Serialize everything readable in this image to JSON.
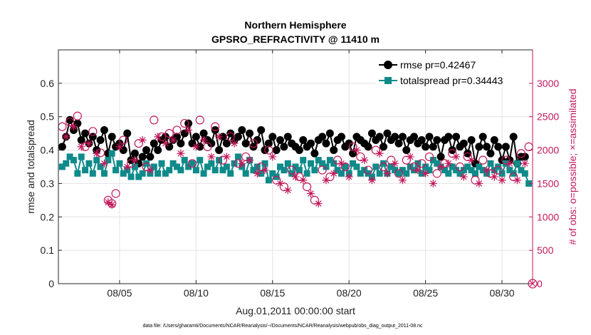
{
  "chart_data": {
    "type": "line",
    "title": "Northern Hemisphere",
    "subtitle": "GPSRO_REFRACTIVITY @ 11410 m",
    "xlabel": "Aug.01,2011 00:00:00 start",
    "ylabel": "rmse and totalspread",
    "y2label": "# of obs: o=possible; ×=assimilated",
    "footnote": "data file: /Users/gharamti/Documents/NCAR/Reanalysis/~/Documents/NCAR/Reanalysis/webpub/obs_diag_output_2011-08.nc",
    "xlim": [
      1,
      32
    ],
    "ylim": [
      0,
      0.7
    ],
    "y2lim": [
      0,
      3500
    ],
    "xtick_values": [
      5,
      10,
      15,
      20,
      25,
      30
    ],
    "xtick_labels": [
      "08/05",
      "08/10",
      "08/15",
      "08/20",
      "08/25",
      "08/30"
    ],
    "ytick_values": [
      0,
      0.1,
      0.2,
      0.3,
      0.4,
      0.5,
      0.6
    ],
    "ytick_labels": [
      "0",
      "0.1",
      "0.2",
      "0.3",
      "0.4",
      "0.5",
      "0.6"
    ],
    "y2tick_values": [
      0,
      500,
      1000,
      1500,
      2000,
      2500,
      3000
    ],
    "y2tick_labels": [
      "0",
      "500",
      "1000",
      "1500",
      "2000",
      "2500",
      "3000"
    ],
    "grid": true,
    "legend_position": "top-right",
    "series": [
      {
        "name": "rmse pr=0.42467",
        "axis": "left",
        "color": "#000000",
        "marker": "circle-filled",
        "x": [
          1.25,
          1.5,
          1.75,
          2,
          2.25,
          2.5,
          2.75,
          3,
          3.25,
          3.5,
          3.75,
          4,
          4.25,
          4.5,
          4.75,
          5,
          5.25,
          5.5,
          5.75,
          6,
          6.25,
          6.5,
          6.75,
          7,
          7.25,
          7.5,
          7.75,
          8,
          8.25,
          8.5,
          8.75,
          9,
          9.25,
          9.5,
          9.75,
          10,
          10.25,
          10.5,
          10.75,
          11,
          11.25,
          11.5,
          11.75,
          12,
          12.25,
          12.5,
          12.75,
          13,
          13.25,
          13.5,
          13.75,
          14,
          14.25,
          14.5,
          14.75,
          15,
          15.25,
          15.5,
          15.75,
          16,
          16.25,
          16.5,
          16.75,
          17,
          17.25,
          17.5,
          17.75,
          18,
          18.25,
          18.5,
          18.75,
          19,
          19.25,
          19.5,
          19.75,
          20,
          20.25,
          20.5,
          20.75,
          21,
          21.25,
          21.5,
          21.75,
          22,
          22.25,
          22.5,
          22.75,
          23,
          23.25,
          23.5,
          23.75,
          24,
          24.25,
          24.5,
          24.75,
          25,
          25.25,
          25.5,
          25.75,
          26,
          26.25,
          26.5,
          26.75,
          27,
          27.25,
          27.5,
          27.75,
          28,
          28.25,
          28.5,
          28.75,
          29,
          29.25,
          29.5,
          29.75,
          30,
          30.25,
          30.5,
          30.75,
          31,
          31.25,
          31.5
        ],
        "values": [
          0.41,
          0.44,
          0.49,
          0.46,
          0.48,
          0.43,
          0.45,
          0.42,
          0.44,
          0.4,
          0.43,
          0.46,
          0.39,
          0.44,
          0.41,
          0.42,
          0.4,
          0.45,
          0.37,
          0.39,
          0.36,
          0.38,
          0.4,
          0.38,
          0.42,
          0.4,
          0.43,
          0.44,
          0.41,
          0.43,
          0.44,
          0.42,
          0.45,
          0.48,
          0.42,
          0.44,
          0.41,
          0.45,
          0.43,
          0.42,
          0.46,
          0.4,
          0.44,
          0.42,
          0.45,
          0.43,
          0.44,
          0.46,
          0.42,
          0.45,
          0.41,
          0.43,
          0.46,
          0.4,
          0.42,
          0.44,
          0.4,
          0.43,
          0.41,
          0.44,
          0.42,
          0.41,
          0.4,
          0.43,
          0.41,
          0.42,
          0.39,
          0.43,
          0.44,
          0.42,
          0.45,
          0.4,
          0.43,
          0.44,
          0.41,
          0.42,
          0.39,
          0.44,
          0.43,
          0.42,
          0.41,
          0.45,
          0.43,
          0.44,
          0.41,
          0.45,
          0.43,
          0.44,
          0.42,
          0.44,
          0.4,
          0.43,
          0.44,
          0.42,
          0.43,
          0.41,
          0.44,
          0.41,
          0.43,
          0.38,
          0.43,
          0.44,
          0.4,
          0.44,
          0.41,
          0.42,
          0.39,
          0.43,
          0.36,
          0.41,
          0.44,
          0.41,
          0.39,
          0.43,
          0.41,
          0.37,
          0.41,
          0.37,
          0.44,
          0.36,
          0.38,
          0.38
        ]
      },
      {
        "name": "totalspread pr=0.34443",
        "axis": "left",
        "color": "#0f8a8a",
        "marker": "square-filled",
        "x": [
          1.25,
          1.5,
          1.75,
          2,
          2.25,
          2.5,
          2.75,
          3,
          3.25,
          3.5,
          3.75,
          4,
          4.25,
          4.5,
          4.75,
          5,
          5.25,
          5.5,
          5.75,
          6,
          6.25,
          6.5,
          6.75,
          7,
          7.25,
          7.5,
          7.75,
          8,
          8.25,
          8.5,
          8.75,
          9,
          9.25,
          9.5,
          9.75,
          10,
          10.25,
          10.5,
          10.75,
          11,
          11.25,
          11.5,
          11.75,
          12,
          12.25,
          12.5,
          12.75,
          13,
          13.25,
          13.5,
          13.75,
          14,
          14.25,
          14.5,
          14.75,
          15,
          15.25,
          15.5,
          15.75,
          16,
          16.25,
          16.5,
          16.75,
          17,
          17.25,
          17.5,
          17.75,
          18,
          18.25,
          18.5,
          18.75,
          19,
          19.25,
          19.5,
          19.75,
          20,
          20.25,
          20.5,
          20.75,
          21,
          21.25,
          21.5,
          21.75,
          22,
          22.25,
          22.5,
          22.75,
          23,
          23.25,
          23.5,
          23.75,
          24,
          24.25,
          24.5,
          24.75,
          25,
          25.25,
          25.5,
          25.75,
          26,
          26.25,
          26.5,
          26.75,
          27,
          27.25,
          27.5,
          27.75,
          28,
          28.25,
          28.5,
          28.75,
          29,
          29.25,
          29.5,
          29.75,
          30,
          30.25,
          30.5,
          30.75,
          31,
          31.25,
          31.5,
          31.75
        ],
        "values": [
          0.35,
          0.36,
          0.38,
          0.37,
          0.33,
          0.38,
          0.34,
          0.36,
          0.33,
          0.37,
          0.35,
          0.33,
          0.37,
          0.39,
          0.34,
          0.36,
          0.33,
          0.34,
          0.32,
          0.35,
          0.32,
          0.33,
          0.36,
          0.33,
          0.35,
          0.33,
          0.36,
          0.33,
          0.34,
          0.36,
          0.35,
          0.34,
          0.37,
          0.35,
          0.36,
          0.34,
          0.37,
          0.33,
          0.35,
          0.36,
          0.34,
          0.37,
          0.34,
          0.35,
          0.33,
          0.36,
          0.38,
          0.35,
          0.33,
          0.37,
          0.34,
          0.35,
          0.33,
          0.36,
          0.31,
          0.33,
          0.32,
          0.35,
          0.34,
          0.36,
          0.33,
          0.35,
          0.34,
          0.37,
          0.33,
          0.36,
          0.34,
          0.37,
          0.36,
          0.35,
          0.37,
          0.36,
          0.34,
          0.33,
          0.35,
          0.33,
          0.36,
          0.35,
          0.33,
          0.34,
          0.33,
          0.32,
          0.35,
          0.33,
          0.36,
          0.33,
          0.35,
          0.34,
          0.33,
          0.34,
          0.33,
          0.35,
          0.34,
          0.36,
          0.33,
          0.35,
          0.34,
          0.37,
          0.36,
          0.35,
          0.34,
          0.33,
          0.35,
          0.34,
          0.33,
          0.34,
          0.35,
          0.34,
          0.33,
          0.35,
          0.34,
          0.33,
          0.36,
          0.34,
          0.35,
          0.33,
          0.36,
          0.34,
          0.33,
          0.36,
          0.34,
          0.33,
          0.3
        ]
      },
      {
        "name": "obs possible (o)",
        "axis": "right",
        "color": "#c2185b",
        "marker": "circle-open",
        "x": [
          1.25,
          1.75,
          2.25,
          2.75,
          3.25,
          3.75,
          4.25,
          4.5,
          4.75,
          5.25,
          5.75,
          6.25,
          6.75,
          7.25,
          7.75,
          8.25,
          8.75,
          9.25,
          9.75,
          10.25,
          10.75,
          11.25,
          11.75,
          12.25,
          12.75,
          13.25,
          13.75,
          14.25,
          14.75,
          15.25,
          15.75,
          16.25,
          16.75,
          17.25,
          17.75,
          18.25,
          18.75,
          19.25,
          19.75,
          20.25,
          20.75,
          21.25,
          21.75,
          22.25,
          22.75,
          23.25,
          23.75,
          24.25,
          24.75,
          25.25,
          25.75,
          26.25,
          26.75,
          27.25,
          27.75,
          28.25,
          28.75,
          29.25,
          29.75,
          30.25,
          30.75,
          31.25,
          31.75
        ],
        "values": [
          2350,
          2420,
          2510,
          2050,
          2280,
          1960,
          1250,
          1200,
          1350,
          2150,
          1800,
          2100,
          1750,
          2450,
          2200,
          2250,
          2300,
          2400,
          1800,
          2450,
          2050,
          2350,
          1850,
          2200,
          1800,
          1900,
          2100,
          1750,
          2000,
          1550,
          1450,
          1700,
          1600,
          1450,
          1250,
          1700,
          1600,
          1850,
          1750,
          2050,
          1900,
          1700,
          2000,
          1750,
          1850,
          1650,
          1850,
          1750,
          1800,
          1900,
          1650,
          1800,
          1950,
          1750,
          1900,
          1550,
          1850,
          1650,
          1700,
          1850,
          1600,
          1950,
          2050
        ]
      },
      {
        "name": "obs assimilated (×)",
        "axis": "right",
        "color": "#c2185b",
        "marker": "asterisk",
        "x": [
          1.5,
          2,
          2.5,
          3,
          3.5,
          4,
          4.25,
          4.5,
          5,
          5.5,
          6,
          6.5,
          7,
          7.5,
          8,
          8.5,
          9,
          9.5,
          10,
          10.5,
          11,
          11.5,
          12,
          12.5,
          13,
          13.5,
          14,
          14.5,
          15,
          15.5,
          16,
          16.5,
          17,
          17.5,
          18,
          18.5,
          19,
          19.5,
          20,
          20.5,
          21,
          21.5,
          22,
          22.5,
          23,
          23.5,
          24,
          24.5,
          25,
          25.5,
          26,
          26.5,
          27,
          27.5,
          28,
          28.5,
          29,
          29.5,
          30,
          30.5,
          31,
          31.5
        ],
        "values": [
          2200,
          2350,
          2050,
          2100,
          1950,
          1800,
          1220,
          1180,
          2050,
          1750,
          1850,
          2150,
          1700,
          2200,
          2100,
          2150,
          1950,
          2300,
          2050,
          2150,
          1900,
          2200,
          1900,
          2100,
          1800,
          1850,
          1650,
          1700,
          1900,
          1500,
          1400,
          1600,
          1550,
          1350,
          1200,
          1550,
          1650,
          1800,
          1600,
          2000,
          1850,
          1550,
          1950,
          1650,
          1800,
          1550,
          1900,
          1700,
          1650,
          1500,
          1750,
          1800,
          1900,
          1600,
          1850,
          1500,
          1700,
          1600,
          1550,
          1800,
          1550,
          1800
        ]
      }
    ]
  }
}
